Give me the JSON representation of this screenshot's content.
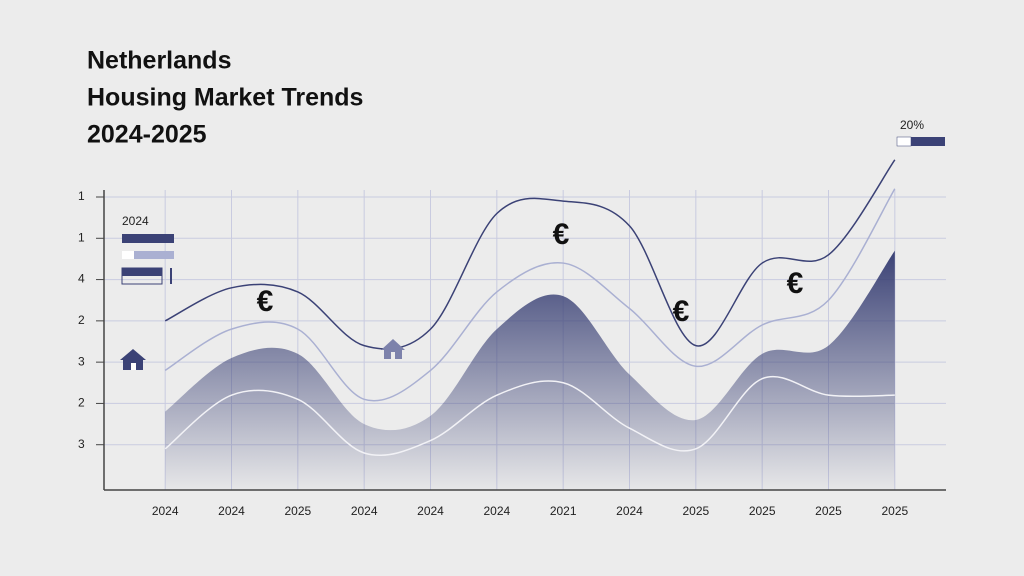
{
  "chart_data": {
    "type": "line",
    "title": [
      "Netherlands",
      "Housing Market Trends",
      "2024-2025"
    ],
    "categories": [
      "2024",
      "2024",
      "2025",
      "2024",
      "2024",
      "2024",
      "2021",
      "2024",
      "2025",
      "2025",
      "2025",
      "2025"
    ],
    "ylim": [
      0,
      7
    ],
    "yticks": [
      {
        "value": 7,
        "label": "1"
      },
      {
        "value": 6,
        "label": "1"
      },
      {
        "value": 5,
        "label": "4"
      },
      {
        "value": 4,
        "label": "2"
      },
      {
        "value": 3,
        "label": "3"
      },
      {
        "value": 2,
        "label": "2"
      },
      {
        "value": 1,
        "label": "3"
      }
    ],
    "grid": true,
    "series": [
      {
        "color": "#3b4276",
        "fill": true,
        "values": [
          1.8,
          3.1,
          3.2,
          1.5,
          1.7,
          3.8,
          4.6,
          2.7,
          1.6,
          3.2,
          3.4,
          5.7
        ]
      },
      {
        "color": "#3b4276",
        "fill": false,
        "values": [
          4.0,
          4.8,
          4.7,
          3.4,
          3.8,
          6.6,
          6.9,
          6.3,
          3.4,
          5.4,
          5.6,
          7.9
        ]
      },
      {
        "color": "#aab0d2",
        "fill": false,
        "values": [
          2.8,
          3.8,
          3.8,
          2.1,
          2.8,
          4.7,
          5.4,
          4.3,
          2.9,
          3.9,
          4.5,
          7.2
        ]
      },
      {
        "color": "#f2f2f6",
        "fill": false,
        "values": [
          0.9,
          2.2,
          2.1,
          0.8,
          1.1,
          2.2,
          2.5,
          1.4,
          0.9,
          2.6,
          2.2,
          2.2
        ]
      }
    ],
    "legend_labels": [
      "2024",
      "20%"
    ],
    "annotations": [
      "€",
      "€",
      "€",
      "€"
    ]
  }
}
